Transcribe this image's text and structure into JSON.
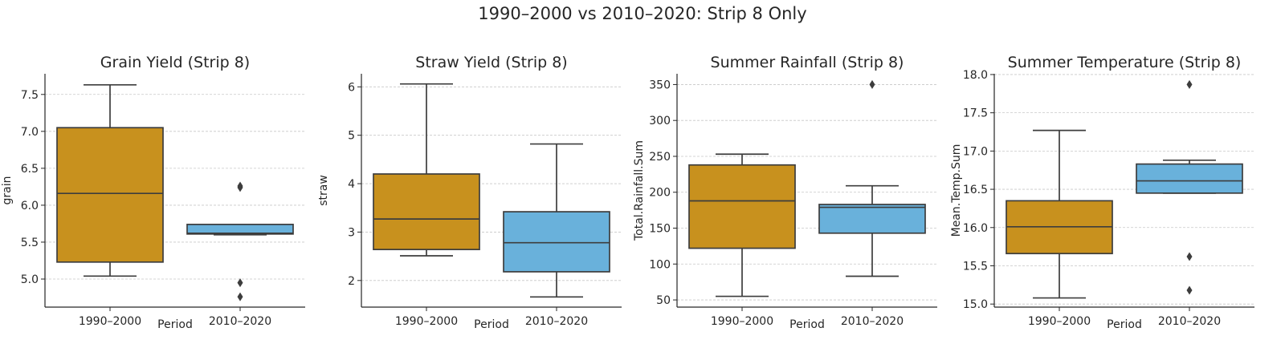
{
  "suptitle": "1990–2000 vs 2010–2020: Strip 8 Only",
  "colors": {
    "period_1990_2000": "#C8911E",
    "period_2010_2020": "#69B1DB",
    "line": "#3d3d3d",
    "grid": "#c8c8c8"
  },
  "chart_data": [
    {
      "type": "box",
      "title": "Grain Yield (Strip 8)",
      "xlabel": "Period",
      "ylabel": "grain",
      "categories": [
        "1990–2000",
        "2010–2020"
      ],
      "ylim": [
        4.62,
        7.78
      ],
      "yticks": [
        5.0,
        5.5,
        6.0,
        6.5,
        7.0,
        7.5
      ],
      "ytick_labels": [
        "5.0",
        "5.5",
        "6.0",
        "6.5",
        "7.0",
        "7.5"
      ],
      "grid": true,
      "boxes": [
        {
          "whislo": 5.04,
          "q1": 5.23,
          "med": 6.16,
          "q3": 7.05,
          "whishi": 7.63,
          "fliers": []
        },
        {
          "whislo": 5.6,
          "q1": 5.61,
          "med": 5.62,
          "q3": 5.74,
          "whishi": 5.74,
          "fliers": [
            6.26,
            6.24,
            4.95,
            4.76
          ]
        }
      ]
    },
    {
      "type": "box",
      "title": "Straw Yield (Strip 8)",
      "xlabel": "Period",
      "ylabel": "straw",
      "categories": [
        "1990–2000",
        "2010–2020"
      ],
      "ylim": [
        1.45,
        6.27
      ],
      "yticks": [
        2,
        3,
        4,
        5,
        6
      ],
      "ytick_labels": [
        "2",
        "3",
        "4",
        "5",
        "6"
      ],
      "grid": true,
      "boxes": [
        {
          "whislo": 2.51,
          "q1": 2.64,
          "med": 3.27,
          "q3": 4.2,
          "whishi": 6.06,
          "fliers": []
        },
        {
          "whislo": 1.66,
          "q1": 2.18,
          "med": 2.78,
          "q3": 3.42,
          "whishi": 4.82,
          "fliers": []
        }
      ]
    },
    {
      "type": "box",
      "title": "Summer Rainfall (Strip 8)",
      "xlabel": "Period",
      "ylabel": "Total.Rainfall.Sum",
      "categories": [
        "1990–2000",
        "2010–2020"
      ],
      "ylim": [
        40,
        365
      ],
      "yticks": [
        50,
        100,
        150,
        200,
        250,
        300,
        350
      ],
      "ytick_labels": [
        "50",
        "100",
        "150",
        "200",
        "250",
        "300",
        "350"
      ],
      "grid": true,
      "boxes": [
        {
          "whislo": 55,
          "q1": 122,
          "med": 188,
          "q3": 238,
          "whishi": 253,
          "fliers": []
        },
        {
          "whislo": 83,
          "q1": 143,
          "med": 179,
          "q3": 183,
          "whishi": 209,
          "fliers": [
            350
          ]
        }
      ]
    },
    {
      "type": "box",
      "title": "Summer Temperature (Strip 8)",
      "xlabel": "Period",
      "ylabel": "Mean.Temp.Sum",
      "categories": [
        "1990–2000",
        "2010–2020"
      ],
      "ylim": [
        14.96,
        18.01
      ],
      "yticks": [
        15.0,
        15.5,
        16.0,
        16.5,
        17.0,
        17.5,
        18.0
      ],
      "ytick_labels": [
        "15.0",
        "15.5",
        "16.0",
        "16.5",
        "17.0",
        "17.5",
        "18.0"
      ],
      "grid": true,
      "boxes": [
        {
          "whislo": 15.08,
          "q1": 15.66,
          "med": 16.01,
          "q3": 16.35,
          "whishi": 17.27,
          "fliers": []
        },
        {
          "whislo": 16.45,
          "q1": 16.45,
          "med": 16.61,
          "q3": 16.83,
          "whishi": 16.88,
          "fliers": [
            17.87,
            15.62,
            15.18
          ]
        }
      ]
    }
  ]
}
